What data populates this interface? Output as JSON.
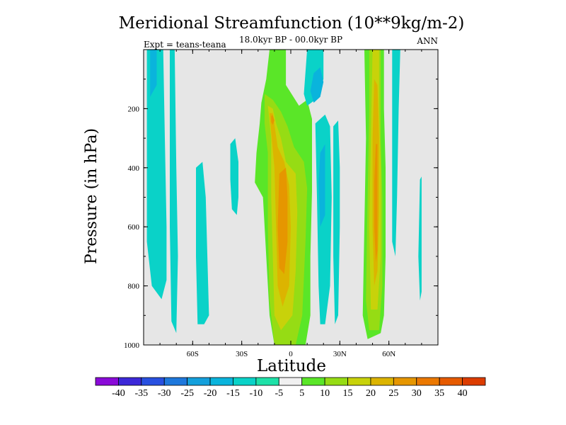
{
  "chart_data": {
    "type": "contour",
    "title": "Meridional Streamfunction (10**9kg/m-2)",
    "subtitle": "18.0kyr BP - 00.0kyr BP",
    "left_string": "Expt = teans-teana",
    "right_string": "ANN",
    "xlabel": "Latitude",
    "ylabel": "Pressure (in hPa)",
    "xlim": [
      -90,
      90
    ],
    "ylim": [
      1000,
      0
    ],
    "y_reversed": true,
    "x_ticks": [
      {
        "value": -60,
        "label": "60S"
      },
      {
        "value": -30,
        "label": "30S"
      },
      {
        "value": 0,
        "label": "0"
      },
      {
        "value": 30,
        "label": "30N"
      },
      {
        "value": 60,
        "label": "60N"
      }
    ],
    "y_ticks": [
      {
        "value": 200,
        "label": "200"
      },
      {
        "value": 400,
        "label": "400"
      },
      {
        "value": 600,
        "label": "600"
      },
      {
        "value": 800,
        "label": "800"
      },
      {
        "value": 1000,
        "label": "1000"
      }
    ],
    "missing_color": "#e6e6e6",
    "colorbar": {
      "levels": [
        "-40",
        "-35",
        "-30",
        "-25",
        "-20",
        "-15",
        "-10",
        "-5",
        "5",
        "10",
        "15",
        "20",
        "25",
        "30",
        "35",
        "40"
      ],
      "colors": [
        "#8a0ad8",
        "#3c28d8",
        "#2850e0",
        "#1e78dc",
        "#14a0dc",
        "#0ab4dc",
        "#0ad2c8",
        "#1ee1a8",
        "#f0f0f0",
        "#5ae628",
        "#96dc14",
        "#c8d20a",
        "#dcb400",
        "#e69600",
        "#eb7800",
        "#e65a00",
        "#dc3c00"
      ]
    },
    "regions": [
      {
        "name": "sh-polar-cell",
        "level": "-10",
        "color": "#0ad2c8",
        "points": [
          [
            -88,
            0
          ],
          [
            -78,
            0
          ],
          [
            -77,
            300
          ],
          [
            -76,
            600
          ],
          [
            -76,
            780
          ],
          [
            -79,
            845
          ],
          [
            -85,
            800
          ],
          [
            -88,
            650
          ]
        ]
      },
      {
        "name": "sh-polar-cell-core",
        "level": "-15",
        "color": "#0ab4dc",
        "points": [
          [
            -86,
            0
          ],
          [
            -82,
            0
          ],
          [
            -82,
            120
          ],
          [
            -86,
            160
          ]
        ]
      },
      {
        "name": "sh-narrow-band",
        "level": "-10",
        "color": "#0ad2c8",
        "points": [
          [
            -74,
            0
          ],
          [
            -71,
            0
          ],
          [
            -70,
            400
          ],
          [
            -69,
            700
          ],
          [
            -70,
            960
          ],
          [
            -73,
            920
          ],
          [
            -74,
            600
          ]
        ]
      },
      {
        "name": "sh-midlat-cell",
        "level": "-10",
        "color": "#0ad2c8",
        "points": [
          [
            -58,
            400
          ],
          [
            -54,
            380
          ],
          [
            -52,
            500
          ],
          [
            -51,
            700
          ],
          [
            -50,
            900
          ],
          [
            -53,
            930
          ],
          [
            -57,
            930
          ],
          [
            -58,
            700
          ]
        ]
      },
      {
        "name": "sh-ferrel-edge",
        "level": "-10",
        "color": "#0ad2c8",
        "points": [
          [
            -37,
            320
          ],
          [
            -34,
            300
          ],
          [
            -32,
            380
          ],
          [
            -32,
            500
          ],
          [
            -33,
            560
          ],
          [
            -36,
            540
          ],
          [
            -37,
            440
          ]
        ]
      },
      {
        "name": "tropical-cell-outer",
        "level": "10",
        "color": "#5ae628",
        "points": [
          [
            -10,
            0
          ],
          [
            -3,
            0
          ],
          [
            -3,
            120
          ],
          [
            5,
            190
          ],
          [
            10,
            170
          ],
          [
            13,
            235
          ],
          [
            13,
            480
          ],
          [
            12,
            700
          ],
          [
            12,
            900
          ],
          [
            9,
            1000
          ],
          [
            -10,
            1000
          ],
          [
            -13,
            900
          ],
          [
            -15,
            700
          ],
          [
            -17,
            500
          ],
          [
            -22,
            450
          ],
          [
            -21,
            350
          ],
          [
            -19,
            250
          ],
          [
            -18,
            180
          ],
          [
            -15,
            100
          ],
          [
            -13,
            0
          ]
        ]
      },
      {
        "name": "tropical-cell-15",
        "level": "15",
        "color": "#96dc14",
        "points": [
          [
            -16,
            150
          ],
          [
            -11,
            170
          ],
          [
            -6,
            210
          ],
          [
            -2,
            260
          ],
          [
            2,
            330
          ],
          [
            8,
            380
          ],
          [
            10,
            470
          ],
          [
            9,
            650
          ],
          [
            7,
            900
          ],
          [
            3,
            1000
          ],
          [
            -10,
            1000
          ],
          [
            -13,
            850
          ],
          [
            -14,
            600
          ],
          [
            -14,
            350
          ],
          [
            -16,
            250
          ]
        ]
      },
      {
        "name": "tropical-cell-20",
        "level": "20",
        "color": "#c8d20a",
        "points": [
          [
            -14,
            190
          ],
          [
            -11,
            200
          ],
          [
            -9,
            250
          ],
          [
            -6,
            300
          ],
          [
            -3,
            380
          ],
          [
            3,
            420
          ],
          [
            4,
            550
          ],
          [
            3,
            750
          ],
          [
            1,
            900
          ],
          [
            -6,
            950
          ],
          [
            -10,
            900
          ],
          [
            -11,
            700
          ],
          [
            -12,
            500
          ],
          [
            -12,
            300
          ]
        ]
      },
      {
        "name": "tropical-cell-25",
        "level": "25",
        "color": "#dcb400",
        "points": [
          [
            -13,
            215
          ],
          [
            -11,
            215
          ],
          [
            -10,
            255
          ],
          [
            -8,
            330
          ],
          [
            -4,
            380
          ],
          [
            -1,
            460
          ],
          [
            0,
            600
          ],
          [
            -1,
            800
          ],
          [
            -5,
            870
          ],
          [
            -8,
            800
          ],
          [
            -9,
            600
          ],
          [
            -10,
            400
          ],
          [
            -12,
            280
          ]
        ]
      },
      {
        "name": "tropical-cell-30",
        "level": "30",
        "color": "#e69600",
        "points": [
          [
            -7,
            420
          ],
          [
            -3,
            400
          ],
          [
            -2,
            500
          ],
          [
            -2,
            650
          ],
          [
            -4,
            760
          ],
          [
            -7,
            740
          ],
          [
            -8,
            600
          ]
        ]
      },
      {
        "name": "tropical-core-30-upper",
        "level": "30",
        "color": "#e69600",
        "points": [
          [
            -12,
            225
          ],
          [
            -11,
            222
          ],
          [
            -10,
            240
          ],
          [
            -11,
            255
          ],
          [
            -12,
            245
          ]
        ]
      },
      {
        "name": "nh-neg-cell-10",
        "level": "-10",
        "color": "#0ad2c8",
        "points": [
          [
            10,
            0
          ],
          [
            20,
            0
          ],
          [
            20,
            100
          ],
          [
            15,
            170
          ],
          [
            10,
            190
          ],
          [
            8,
            150
          ]
        ]
      },
      {
        "name": "nh-neg-cell-15",
        "level": "-15",
        "color": "#0ab4dc",
        "points": [
          [
            14,
            80
          ],
          [
            18,
            60
          ],
          [
            20,
            110
          ],
          [
            18,
            160
          ],
          [
            14,
            180
          ],
          [
            12,
            140
          ]
        ]
      },
      {
        "name": "nh-deep-neg-band",
        "level": "-10",
        "color": "#0ad2c8",
        "points": [
          [
            15,
            250
          ],
          [
            21,
            220
          ],
          [
            24,
            260
          ],
          [
            25,
            500
          ],
          [
            24,
            800
          ],
          [
            21,
            930
          ],
          [
            18,
            930
          ],
          [
            17,
            800
          ],
          [
            16,
            500
          ]
        ]
      },
      {
        "name": "nh-deep-neg-core",
        "level": "-15",
        "color": "#0ab4dc",
        "points": [
          [
            18,
            350
          ],
          [
            21,
            320
          ],
          [
            21,
            450
          ],
          [
            21,
            560
          ],
          [
            18,
            600
          ],
          [
            17,
            450
          ]
        ]
      },
      {
        "name": "nh-inner-band",
        "level": "-10",
        "color": "#0ad2c8",
        "points": [
          [
            26,
            260
          ],
          [
            29,
            240
          ],
          [
            30,
            400
          ],
          [
            30,
            600
          ],
          [
            29,
            900
          ],
          [
            27,
            930
          ],
          [
            26,
            700
          ]
        ]
      },
      {
        "name": "nh-ferrel-outer",
        "level": "10",
        "color": "#5ae628",
        "points": [
          [
            45,
            0
          ],
          [
            57,
            0
          ],
          [
            57,
            200
          ],
          [
            58,
            400
          ],
          [
            58,
            700
          ],
          [
            57,
            900
          ],
          [
            55,
            960
          ],
          [
            47,
            980
          ],
          [
            44,
            900
          ],
          [
            45,
            600
          ],
          [
            46,
            300
          ]
        ]
      },
      {
        "name": "nh-ferrel-15",
        "level": "15",
        "color": "#96dc14",
        "points": [
          [
            48,
            0
          ],
          [
            55,
            0
          ],
          [
            55,
            300
          ],
          [
            56,
            500
          ],
          [
            56,
            800
          ],
          [
            54,
            950
          ],
          [
            48,
            950
          ],
          [
            46,
            850
          ],
          [
            47,
            500
          ],
          [
            48,
            200
          ]
        ]
      },
      {
        "name": "nh-ferrel-20",
        "level": "20",
        "color": "#c8d20a",
        "points": [
          [
            50,
            0
          ],
          [
            54,
            0
          ],
          [
            54,
            200
          ],
          [
            55,
            400
          ],
          [
            55,
            700
          ],
          [
            53,
            880
          ],
          [
            49,
            880
          ],
          [
            48,
            600
          ],
          [
            49,
            300
          ]
        ]
      },
      {
        "name": "nh-ferrel-25",
        "level": "25",
        "color": "#dcb400",
        "points": [
          [
            51,
            100
          ],
          [
            53,
            120
          ],
          [
            54,
            300
          ],
          [
            54,
            550
          ],
          [
            53,
            750
          ],
          [
            51,
            800
          ],
          [
            50,
            600
          ],
          [
            50,
            300
          ]
        ]
      },
      {
        "name": "nh-ferrel-30",
        "level": "30",
        "color": "#e69600",
        "points": [
          [
            52,
            320
          ],
          [
            53,
            320
          ],
          [
            53,
            450
          ],
          [
            53,
            680
          ],
          [
            52,
            720
          ],
          [
            51,
            600
          ],
          [
            51,
            450
          ]
        ]
      },
      {
        "name": "nh-polar-neg-band",
        "level": "-10",
        "color": "#0ad2c8",
        "points": [
          [
            62,
            0
          ],
          [
            67,
            0
          ],
          [
            66,
            200
          ],
          [
            65,
            500
          ],
          [
            64,
            700
          ],
          [
            62,
            650
          ],
          [
            62,
            300
          ]
        ]
      },
      {
        "name": "nh-polar-thin",
        "level": "-10",
        "color": "#0ad2c8",
        "points": [
          [
            79,
            440
          ],
          [
            80,
            430
          ],
          [
            80,
            700
          ],
          [
            80,
            820
          ],
          [
            79,
            850
          ],
          [
            78,
            700
          ]
        ]
      }
    ]
  }
}
